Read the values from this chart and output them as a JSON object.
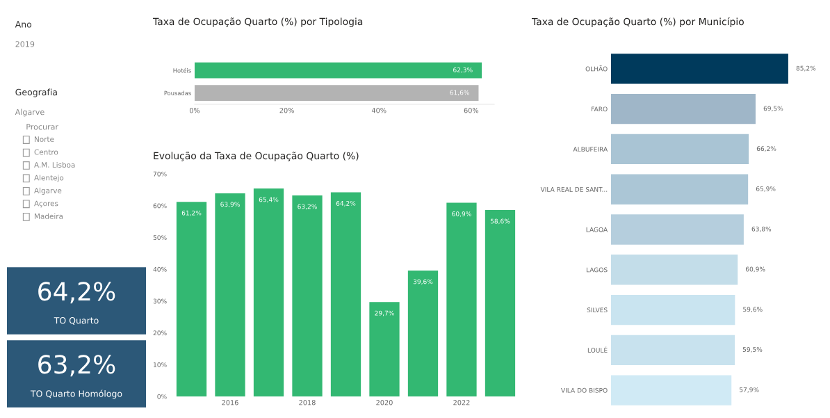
{
  "chart_data": [
    {
      "type": "other",
      "annotations": [
        "Ano",
        "2019",
        "Geografia",
        "Algarve",
        "Procurar",
        "Norte",
        "Centro",
        "A.M. Lisboa",
        "Alentejo",
        "Algarve",
        "Açores",
        "Madeira"
      ]
    },
    {
      "type": "other",
      "categories": [
        "TO Quarto",
        "TO Quarto Homólogo"
      ],
      "value_labels": [
        "64,2%",
        "63,2%"
      ],
      "colors": [
        "#2c5878",
        "#2c5878"
      ]
    },
    {
      "type": "bar",
      "orientation": "horizontal",
      "title": "Taxa de Ocupação Quarto (%) por Tipologia",
      "categories": [
        "Hotéis",
        "Pousadas"
      ],
      "values": [
        62.3,
        61.6
      ],
      "value_labels": [
        "62,3%",
        "61,6%"
      ],
      "colors": [
        "#33b872",
        "#b3b3b3"
      ],
      "xlim": [
        0,
        65
      ],
      "xticks": [
        {
          "value": 0,
          "label": "0%"
        },
        {
          "value": 20,
          "label": "20%"
        },
        {
          "value": 40,
          "label": "40%"
        },
        {
          "value": 60,
          "label": "60%"
        }
      ],
      "grid": false
    },
    {
      "type": "bar",
      "title": "Evolução da Taxa de Ocupação Quarto (%)",
      "categories": [
        null,
        "2016",
        null,
        "2018",
        null,
        "2020",
        null,
        "2022",
        null
      ],
      "values": [
        61.2,
        63.9,
        65.4,
        63.2,
        64.2,
        29.7,
        39.6,
        60.9,
        58.6
      ],
      "value_labels": [
        "61,2%",
        "63,9%",
        "65,4%",
        "63,2%",
        "64,2%",
        "29,7%",
        "39,6%",
        "60,9%",
        "58,6%"
      ],
      "color": "#33b872",
      "ylim": [
        0,
        70
      ],
      "yticks": [
        {
          "value": 0,
          "label": "0%"
        },
        {
          "value": 10,
          "label": "10%"
        },
        {
          "value": 20,
          "label": "20%"
        },
        {
          "value": 30,
          "label": "30%"
        },
        {
          "value": 40,
          "label": "40%"
        },
        {
          "value": 50,
          "label": "50%"
        },
        {
          "value": 60,
          "label": "60%"
        },
        {
          "value": 70,
          "label": "70%"
        }
      ],
      "grid": false
    },
    {
      "type": "bar",
      "orientation": "horizontal",
      "title": "Taxa de Ocupação Quarto (%) por Município",
      "categories": [
        "OLHÃO",
        "FARO",
        "ALBUFEIRA",
        "VILA REAL DE SANT...",
        "LAGOA",
        "LAGOS",
        "SILVES",
        "LOULÉ",
        "VILA DO BISPO"
      ],
      "values": [
        85.2,
        69.5,
        66.2,
        65.9,
        63.8,
        60.9,
        59.6,
        59.5,
        57.9
      ],
      "value_labels": [
        "85,2%",
        "69,5%",
        "66,2%",
        "65,9%",
        "63,8%",
        "60,9%",
        "59,6%",
        "59,5%",
        "57,9%"
      ],
      "colors": [
        "#003a5c",
        "#9fb6c8",
        "#a9c4d4",
        "#abc6d6",
        "#b5cedd",
        "#c3dde9",
        "#c9e4f0",
        "#c8e2ee",
        "#d0eaf5"
      ],
      "grid": false
    }
  ]
}
